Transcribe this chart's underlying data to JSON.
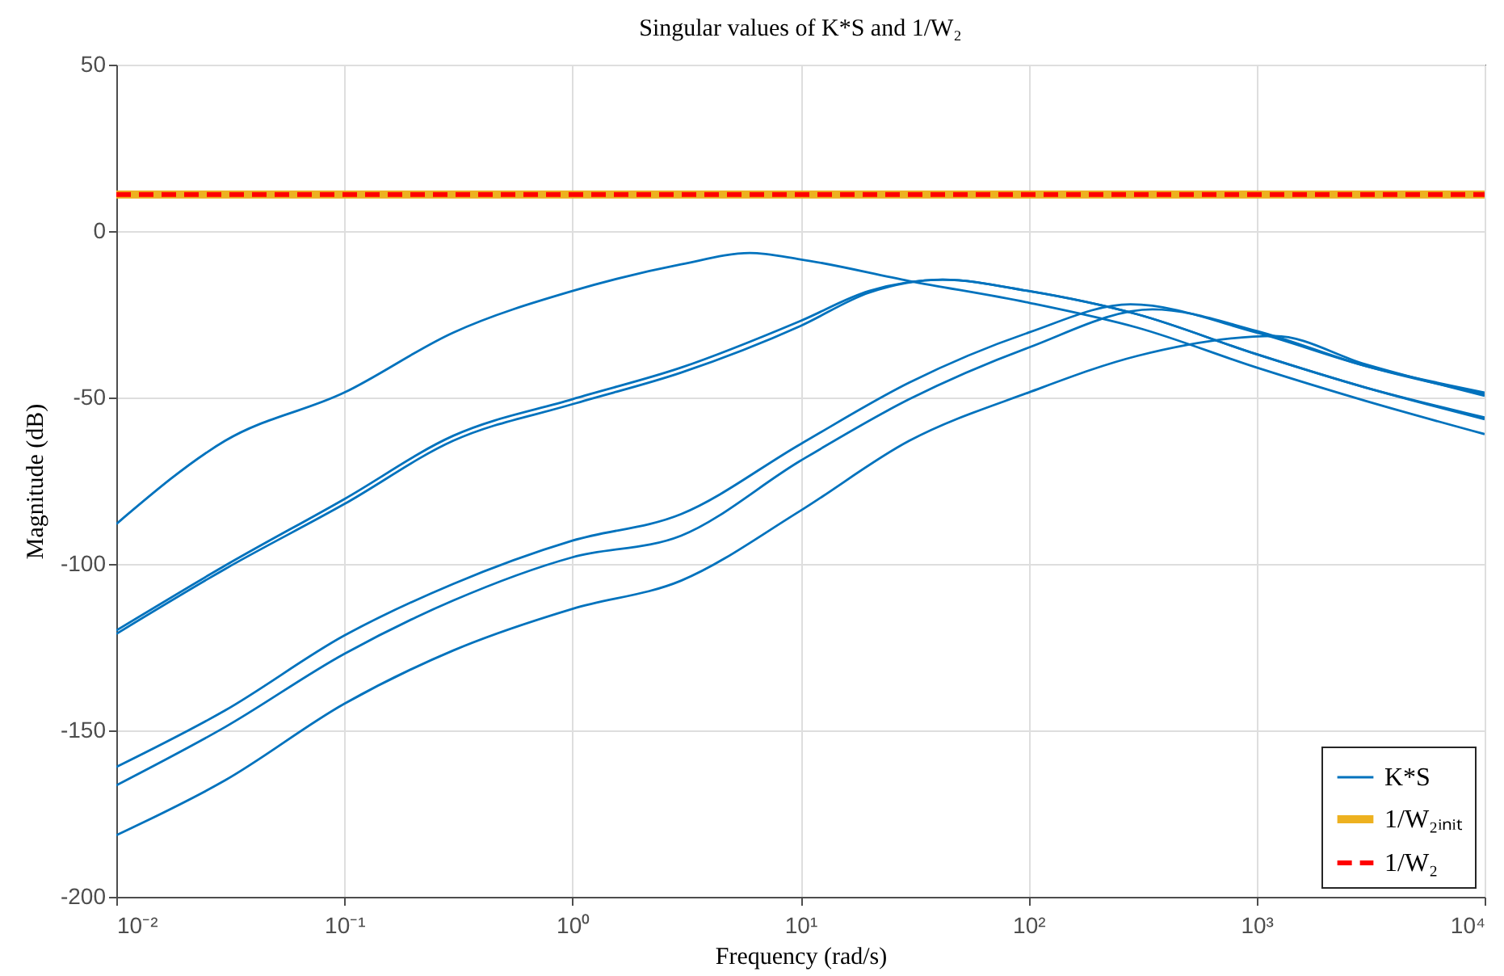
{
  "chart_data": {
    "type": "line",
    "title": "Singular values of K*S and 1/W₂",
    "xlabel": "Frequency (rad/s)",
    "ylabel": "Magnitude (dB)",
    "log": "x",
    "grid": true,
    "legend": "bottom right",
    "xlim": [
      0.01,
      10000
    ],
    "xticks": [
      {
        "value": 0.01,
        "label": "10⁻²"
      },
      {
        "value": 0.1,
        "label": "10⁻¹"
      },
      {
        "value": 1,
        "label": "10⁰"
      },
      {
        "value": 10,
        "label": "10¹"
      },
      {
        "value": 100,
        "label": "10²"
      },
      {
        "value": 1000,
        "label": "10³"
      },
      {
        "value": 10000,
        "label": "10⁴"
      }
    ],
    "ylim": [
      -200,
      50
    ],
    "yticks": [
      -200,
      -150,
      -100,
      -50,
      0,
      50
    ],
    "series": [
      {
        "name": "K*S",
        "color": "#0072bd",
        "x": [
          0.01,
          0.03,
          0.1,
          0.3,
          1,
          3,
          6,
          10,
          30,
          100,
          300,
          1000,
          3000,
          10000
        ],
        "values": [
          -88,
          -63,
          -48.5,
          -30.5,
          -18,
          -10,
          -6.6,
          -8.5,
          -15,
          -21.5,
          -29,
          -41,
          -51,
          -61
        ]
      },
      {
        "color": "#0072bd",
        "x": [
          0.01,
          0.03,
          0.1,
          0.3,
          1,
          3,
          10,
          20,
          42,
          100,
          300,
          1000,
          3000,
          10000
        ],
        "values": [
          -120,
          -100.5,
          -80.5,
          -61.5,
          -50.5,
          -41,
          -27,
          -18,
          -14.6,
          -18,
          -25,
          -37,
          -47,
          -56
        ]
      },
      {
        "color": "#0072bd",
        "x": [
          0.01,
          0.03,
          0.1,
          0.3,
          1,
          3,
          10,
          20,
          42,
          100,
          300,
          1000,
          3000,
          10000
        ],
        "values": [
          -121,
          -101.5,
          -82,
          -63,
          -52,
          -42.5,
          -28.5,
          -18.5,
          -14.6,
          -18,
          -25,
          -37,
          -47,
          -56.5
        ]
      },
      {
        "color": "#0072bd",
        "x": [
          0.01,
          0.03,
          0.1,
          0.3,
          1,
          3,
          10,
          30,
          100,
          280,
          1000,
          3000,
          10000
        ],
        "values": [
          -161,
          -144,
          -121.5,
          -106,
          -93,
          -85,
          -64,
          -45.5,
          -30.5,
          -22,
          -30.5,
          -40.5,
          -48.5
        ]
      },
      {
        "color": "#0072bd",
        "x": [
          0.01,
          0.03,
          0.1,
          0.3,
          1,
          3,
          10,
          30,
          100,
          350,
          1000,
          3000,
          10000
        ],
        "values": [
          -166.5,
          -149,
          -127,
          -111,
          -98,
          -91.5,
          -69,
          -50.5,
          -35,
          -23.5,
          -30,
          -40.5,
          -49
        ]
      },
      {
        "color": "#0072bd",
        "x": [
          0.01,
          0.03,
          0.1,
          0.3,
          1,
          3,
          10,
          30,
          100,
          300,
          1200,
          3000,
          10000
        ],
        "values": [
          -181.5,
          -165,
          -142,
          -126,
          -113.5,
          -105,
          -84,
          -63,
          -48.5,
          -37.5,
          -31.5,
          -40,
          -49.5
        ]
      },
      {
        "name": "1/W₂ᵢₙᵢₜ",
        "color": "#edb120",
        "line_style": "solid",
        "x": [
          0.01,
          10000
        ],
        "values": [
          11,
          11
        ]
      },
      {
        "name": "1/W₂",
        "color": "#ff0000",
        "line_style": "dashed",
        "x": [
          0.01,
          10000
        ],
        "values": [
          11,
          11
        ]
      }
    ]
  }
}
